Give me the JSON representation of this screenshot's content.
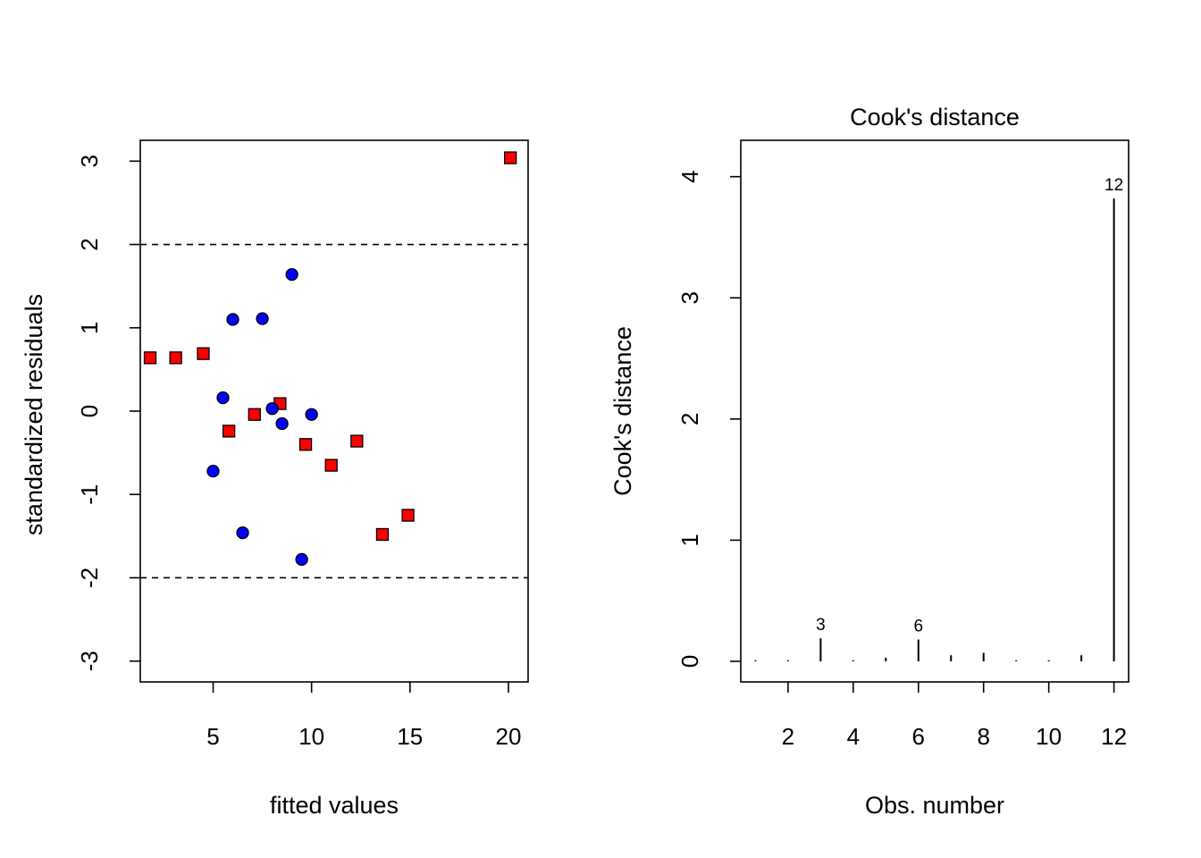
{
  "chart_data": [
    {
      "type": "scatter",
      "title": "",
      "xlabel": "fitted values",
      "ylabel": "standardized residuals",
      "xlim": [
        1.3,
        21.0
      ],
      "ylim": [
        -3.25,
        3.25
      ],
      "xticks": [
        5,
        10,
        15,
        20
      ],
      "yticks": [
        -3,
        -2,
        -1,
        0,
        1,
        2,
        3
      ],
      "reference_lines": [
        2,
        -2
      ],
      "grid": false,
      "series": [
        {
          "marker": "square",
          "color": "#ff0000",
          "x": [
            1.8,
            3.1,
            4.5,
            5.8,
            7.1,
            8.4,
            9.7,
            11.0,
            12.3,
            13.6,
            14.9,
            20.1
          ],
          "y": [
            0.64,
            0.64,
            0.69,
            -0.24,
            -0.04,
            0.09,
            -0.4,
            -0.65,
            -0.36,
            -1.48,
            -1.25,
            3.04
          ]
        },
        {
          "marker": "circle",
          "color": "#0000ff",
          "x": [
            5.0,
            5.5,
            6.0,
            6.5,
            7.5,
            8.0,
            8.5,
            9.0,
            9.5,
            10.0
          ],
          "y": [
            -0.72,
            0.16,
            1.1,
            -1.46,
            1.11,
            0.03,
            -0.15,
            1.64,
            -1.78,
            -0.04
          ]
        }
      ]
    },
    {
      "type": "bar",
      "title": "Cook's distance",
      "xlabel": "Obs. number",
      "ylabel": "Cook's distance",
      "xlim": [
        0.55,
        12.45
      ],
      "ylim": [
        -0.17,
        4.3
      ],
      "xticks": [
        2,
        4,
        6,
        8,
        10,
        12
      ],
      "yticks": [
        0,
        1,
        2,
        3,
        4
      ],
      "grid": false,
      "x": [
        1,
        2,
        3,
        4,
        5,
        6,
        7,
        8,
        9,
        10,
        11,
        12
      ],
      "values": [
        0.004,
        0.002,
        0.19,
        0.002,
        0.03,
        0.18,
        0.05,
        0.07,
        0.003,
        0.002,
        0.05,
        3.82
      ],
      "labels": [
        {
          "x": 3,
          "text": "3"
        },
        {
          "x": 6,
          "text": "6"
        },
        {
          "x": 12,
          "text": "12"
        }
      ]
    }
  ]
}
